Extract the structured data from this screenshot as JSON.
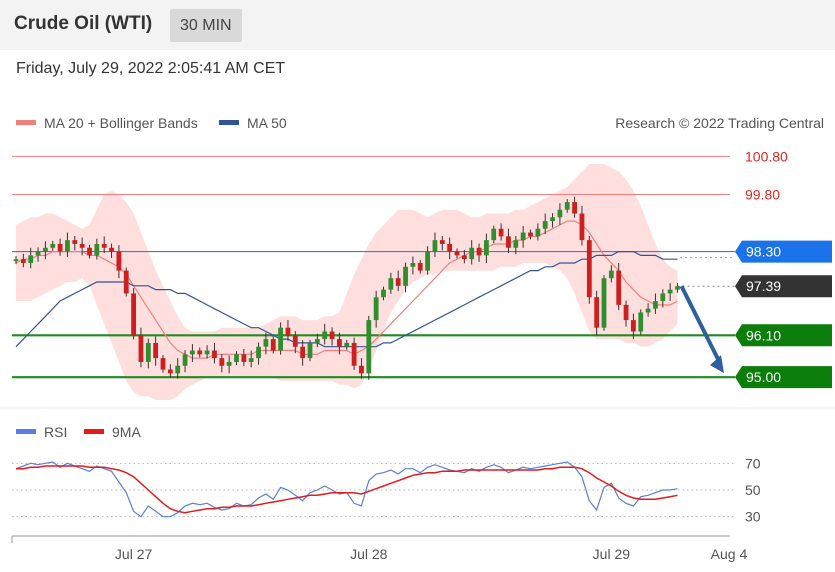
{
  "header": {
    "title": "Crude Oil (WTI)",
    "interval": "30 MIN",
    "timestamp": "Friday, July 29, 2022 2:05:41 AM CET"
  },
  "colors": {
    "ma20": "#f08080",
    "ma50": "#2f5597",
    "bands": "#ffdede",
    "up": "#2f8f2f",
    "down": "#cc1f1f",
    "resistance": "#f08080",
    "pivot": "#4c6ef5",
    "pivot_label": "#1a73e8",
    "current": "#333333",
    "support": "#1e8c1e",
    "support_label": "#0a7d0a",
    "arrow": "#2f5f9f",
    "rsi": "#5b7fe0",
    "rsi_ma": "#e31b1b"
  },
  "chart_data": [
    {
      "type": "candlestick",
      "legend": [
        {
          "name": "MA 20 + Bollinger Bands",
          "color": "#f08080"
        },
        {
          "name": "MA 50",
          "color": "#2f5597"
        }
      ],
      "credit": "Research © 2022 Trading Central",
      "ylim": [
        94.4,
        101.1
      ],
      "levels": [
        {
          "value": 100.8,
          "label": "100.80",
          "kind": "resistance"
        },
        {
          "value": 99.8,
          "label": "99.80",
          "kind": "resistance"
        },
        {
          "value": 98.3,
          "label": "98.30",
          "kind": "pivot"
        },
        {
          "value": 97.39,
          "label": "97.39",
          "kind": "current"
        },
        {
          "value": 96.1,
          "label": "96.10",
          "kind": "support"
        },
        {
          "value": 95.0,
          "label": "95.00",
          "kind": "support"
        }
      ],
      "x_ticks": [
        "Jul 27",
        "Jul 28",
        "Jul 29",
        "Aug 4"
      ],
      "x_tick_index": [
        16,
        48,
        81,
        97
      ],
      "closes": [
        98.1,
        98.0,
        98.2,
        98.3,
        98.4,
        98.5,
        98.3,
        98.6,
        98.5,
        98.4,
        98.2,
        98.5,
        98.4,
        98.3,
        97.8,
        97.2,
        96.1,
        95.4,
        95.9,
        95.5,
        95.2,
        95.1,
        95.3,
        95.6,
        95.7,
        95.6,
        95.7,
        95.5,
        95.3,
        95.4,
        95.6,
        95.4,
        95.5,
        95.8,
        96.0,
        95.7,
        96.3,
        96.1,
        95.8,
        95.5,
        95.9,
        96.0,
        96.2,
        96.0,
        95.8,
        95.9,
        95.3,
        95.1,
        96.5,
        97.1,
        97.3,
        97.6,
        97.4,
        97.9,
        98.0,
        97.8,
        98.3,
        98.6,
        98.5,
        98.3,
        98.2,
        98.1,
        98.4,
        98.2,
        98.6,
        98.9,
        98.7,
        98.4,
        98.6,
        98.8,
        98.7,
        98.9,
        99.1,
        99.2,
        99.4,
        99.6,
        99.3,
        98.6,
        97.1,
        96.3,
        97.6,
        97.8,
        96.9,
        96.5,
        96.2,
        96.7,
        96.8,
        97.0,
        97.2,
        97.3,
        97.39
      ],
      "ma20": [
        98.0,
        98.1,
        98.1,
        98.2,
        98.2,
        98.3,
        98.3,
        98.3,
        98.3,
        98.3,
        98.2,
        98.2,
        98.1,
        98.0,
        97.9,
        97.7,
        97.4,
        97.1,
        96.8,
        96.5,
        96.2,
        95.9,
        95.7,
        95.6,
        95.5,
        95.5,
        95.5,
        95.6,
        95.6,
        95.6,
        95.6,
        95.6,
        95.6,
        95.7,
        95.7,
        95.7,
        95.7,
        95.7,
        95.7,
        95.6,
        95.6,
        95.6,
        95.7,
        95.7,
        95.7,
        95.7,
        95.6,
        95.7,
        95.8,
        96.0,
        96.2,
        96.4,
        96.6,
        96.8,
        97.0,
        97.2,
        97.4,
        97.6,
        97.8,
        98.0,
        98.1,
        98.2,
        98.3,
        98.3,
        98.4,
        98.5,
        98.5,
        98.5,
        98.6,
        98.6,
        98.7,
        98.7,
        98.8,
        98.9,
        99.0,
        99.1,
        99.1,
        99.0,
        98.8,
        98.5,
        98.2,
        98.0,
        97.8,
        97.5,
        97.3,
        97.1,
        97.0,
        96.9,
        96.9,
        96.9,
        97.0
      ],
      "band_upper": [
        99.0,
        99.1,
        99.2,
        99.2,
        99.3,
        99.3,
        99.2,
        99.1,
        99.0,
        98.9,
        99.0,
        99.4,
        99.8,
        99.9,
        99.8,
        99.6,
        99.3,
        98.8,
        98.3,
        97.8,
        97.4,
        97.0,
        96.6,
        96.3,
        96.2,
        96.2,
        96.2,
        96.2,
        96.3,
        96.3,
        96.3,
        96.3,
        96.3,
        96.3,
        96.4,
        96.5,
        96.6,
        96.6,
        96.6,
        96.5,
        96.5,
        96.5,
        96.6,
        96.6,
        96.7,
        97.2,
        97.7,
        98.1,
        98.5,
        98.8,
        99.0,
        99.2,
        99.4,
        99.4,
        99.4,
        99.3,
        99.2,
        99.3,
        99.4,
        99.4,
        99.4,
        99.3,
        99.2,
        99.2,
        99.3,
        99.3,
        99.3,
        99.3,
        99.4,
        99.4,
        99.5,
        99.6,
        99.7,
        99.8,
        99.9,
        100.0,
        100.2,
        100.4,
        100.6,
        100.6,
        100.6,
        100.5,
        100.4,
        100.2,
        99.9,
        99.5,
        99.0,
        98.5,
        98.1,
        97.9,
        97.8
      ],
      "band_lower": [
        97.0,
        97.0,
        97.0,
        97.1,
        97.2,
        97.3,
        97.4,
        97.5,
        97.5,
        97.6,
        97.4,
        96.9,
        96.4,
        95.9,
        95.4,
        94.9,
        94.6,
        94.5,
        94.5,
        94.4,
        94.4,
        94.4,
        94.5,
        94.7,
        94.8,
        94.9,
        95.0,
        95.0,
        95.0,
        95.0,
        95.0,
        95.0,
        95.0,
        95.0,
        95.0,
        95.0,
        94.9,
        94.9,
        94.9,
        94.9,
        94.9,
        94.9,
        94.9,
        94.9,
        94.8,
        94.8,
        94.7,
        94.8,
        95.2,
        95.7,
        96.2,
        96.7,
        97.0,
        97.3,
        97.5,
        97.6,
        97.7,
        97.7,
        97.8,
        97.8,
        97.8,
        97.8,
        97.8,
        97.8,
        97.8,
        97.8,
        97.9,
        97.9,
        97.9,
        98.0,
        98.0,
        98.0,
        98.0,
        97.9,
        97.8,
        97.6,
        97.2,
        96.7,
        96.2,
        96.0,
        96.0,
        96.0,
        96.0,
        95.9,
        95.9,
        95.8,
        95.8,
        95.9,
        96.0,
        96.2,
        96.4
      ],
      "ma50": [
        95.8,
        96.0,
        96.2,
        96.4,
        96.6,
        96.8,
        97.0,
        97.1,
        97.2,
        97.3,
        97.4,
        97.5,
        97.5,
        97.5,
        97.5,
        97.5,
        97.4,
        97.4,
        97.4,
        97.3,
        97.3,
        97.3,
        97.2,
        97.2,
        97.1,
        97.0,
        96.9,
        96.8,
        96.7,
        96.6,
        96.5,
        96.4,
        96.3,
        96.3,
        96.2,
        96.1,
        96.0,
        96.0,
        95.9,
        95.9,
        95.9,
        95.9,
        95.8,
        95.8,
        95.8,
        95.8,
        95.8,
        95.8,
        95.8,
        95.8,
        95.9,
        95.9,
        96.0,
        96.1,
        96.2,
        96.3,
        96.4,
        96.5,
        96.6,
        96.7,
        96.8,
        96.9,
        97.0,
        97.1,
        97.2,
        97.3,
        97.4,
        97.5,
        97.6,
        97.7,
        97.8,
        97.8,
        97.9,
        97.9,
        98.0,
        98.0,
        98.0,
        98.1,
        98.1,
        98.2,
        98.2,
        98.2,
        98.3,
        98.3,
        98.3,
        98.2,
        98.2,
        98.2,
        98.1,
        98.1,
        98.1
      ],
      "forecast": {
        "from": 97.39,
        "to": 95.0
      }
    },
    {
      "type": "line",
      "legend": [
        {
          "name": "RSI",
          "color": "#5b7fe0"
        },
        {
          "name": "9MA",
          "color": "#e31b1b"
        }
      ],
      "ylim": [
        20,
        80
      ],
      "y_ticks": [
        "70",
        "50",
        "30"
      ],
      "y_tick_values": [
        70,
        50,
        30
      ],
      "rsi": [
        66,
        68,
        70,
        69,
        70,
        71,
        67,
        70,
        68,
        66,
        64,
        68,
        66,
        64,
        56,
        48,
        34,
        30,
        38,
        34,
        30,
        30,
        33,
        38,
        40,
        39,
        40,
        37,
        35,
        36,
        40,
        38,
        39,
        44,
        47,
        43,
        52,
        50,
        46,
        42,
        48,
        50,
        53,
        50,
        47,
        48,
        40,
        38,
        57,
        62,
        63,
        65,
        62,
        66,
        66,
        63,
        67,
        69,
        67,
        65,
        64,
        63,
        66,
        64,
        67,
        69,
        67,
        63,
        65,
        67,
        66,
        67,
        68,
        69,
        70,
        71,
        67,
        60,
        42,
        35,
        52,
        55,
        44,
        40,
        38,
        45,
        46,
        48,
        50,
        50,
        51
      ],
      "rsi_ma": [
        66,
        66,
        67,
        67,
        68,
        68,
        68,
        68,
        68,
        68,
        67,
        67,
        67,
        66,
        65,
        63,
        60,
        55,
        50,
        45,
        40,
        36,
        34,
        33,
        34,
        35,
        36,
        36,
        37,
        37,
        38,
        38,
        38,
        39,
        40,
        41,
        42,
        43,
        44,
        45,
        46,
        46,
        47,
        48,
        48,
        48,
        48,
        47,
        49,
        51,
        53,
        55,
        57,
        59,
        61,
        62,
        63,
        63,
        64,
        64,
        64,
        65,
        65,
        65,
        65,
        65,
        65,
        65,
        65,
        65,
        65,
        65,
        66,
        66,
        67,
        67,
        67,
        66,
        63,
        59,
        56,
        53,
        49,
        46,
        44,
        43,
        43,
        43,
        44,
        45,
        46
      ]
    }
  ]
}
